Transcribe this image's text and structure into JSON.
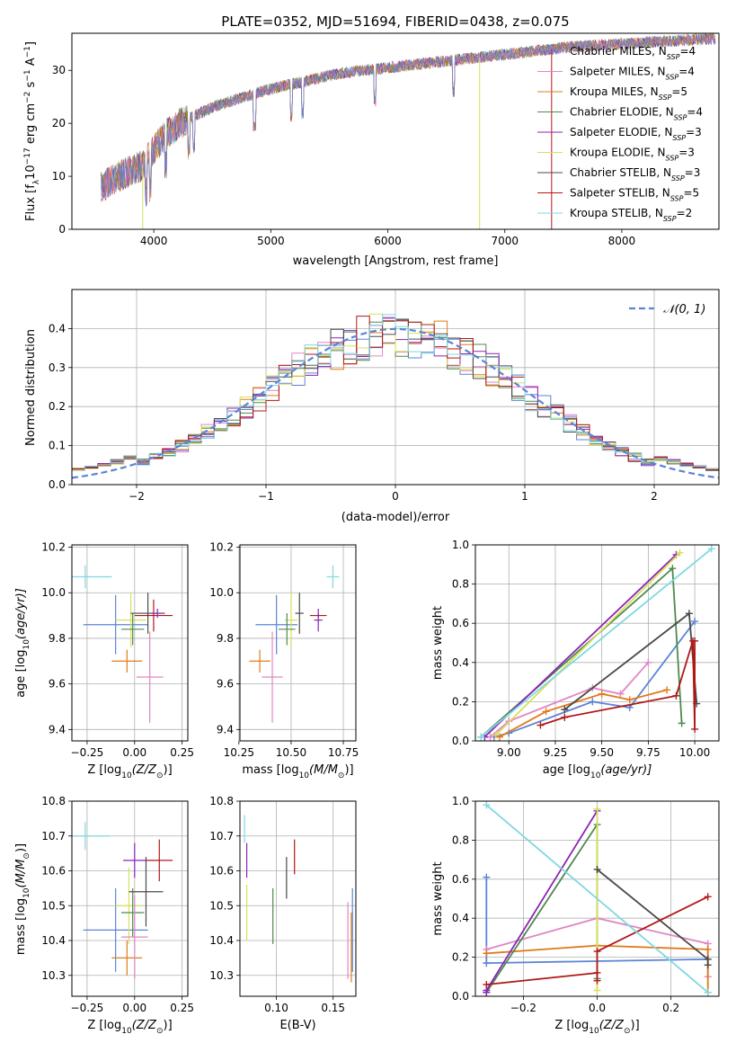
{
  "colors": {
    "chabrier_miles": "#5b84d6",
    "salpeter_miles": "#e086c4",
    "kroupa_miles": "#e07b1a",
    "chabrier_elodie": "#4e8a4e",
    "salpeter_elodie": "#8b24b6",
    "kroupa_elodie": "#d6e05a",
    "chabrier_stelib": "#4a4a4a",
    "salpeter_stelib": "#b01818",
    "kroupa_stelib": "#7fd8e0",
    "normal_curve": "#5b84d6",
    "grid": "#b0b0b0"
  },
  "chart_data": [
    {
      "type": "line",
      "panel": "spectrum",
      "title": "PLATE=0352, MJD=51694, FIBERID=0438, z=0.075",
      "xlabel": "wavelength [Angstrom, rest frame]",
      "ylabel_text": "Flux [f",
      "ylabel_sub": "λ",
      "ylabel_rest": "10",
      "ylabel_exp": "−17",
      "ylabel_tail": " erg cm",
      "ylabel_units": [
        "−2",
        "s",
        "−1",
        "A",
        "−1"
      ],
      "xlim": [
        3300,
        8830
      ],
      "ylim": [
        0,
        37
      ],
      "xticks": [
        4000,
        5000,
        6000,
        7000,
        8000
      ],
      "yticks": [
        0,
        10,
        20,
        30
      ],
      "grid": false,
      "legend_placement": "right",
      "legend": [
        {
          "lib": "Chabrier MILES",
          "n": "4",
          "key": "chabrier_miles"
        },
        {
          "lib": "Salpeter MILES",
          "n": "4",
          "key": "salpeter_miles"
        },
        {
          "lib": "Kroupa MILES",
          "n": "5",
          "key": "kroupa_miles"
        },
        {
          "lib": "Chabrier ELODIE",
          "n": "4",
          "key": "chabrier_elodie"
        },
        {
          "lib": "Salpeter ELODIE",
          "n": "3",
          "key": "salpeter_elodie"
        },
        {
          "lib": "Kroupa ELODIE",
          "n": "3",
          "key": "kroupa_elodie"
        },
        {
          "lib": "Chabrier STELIB",
          "n": "3",
          "key": "chabrier_stelib"
        },
        {
          "lib": "Salpeter STELIB",
          "n": "5",
          "key": "salpeter_stelib"
        },
        {
          "lib": "Kroupa STELIB",
          "n": "2",
          "key": "kroupa_stelib"
        }
      ],
      "legend_n_label": "N",
      "legend_n_sub": "SSP",
      "continuum": {
        "x": [
          3550,
          3700,
          3900,
          4000,
          4100,
          4300,
          4500,
          4700,
          5000,
          5300,
          5600,
          6000,
          6400,
          6800,
          7200,
          7600,
          8000,
          8400,
          8800
        ],
        "y": [
          8,
          10,
          12,
          15,
          18,
          21,
          23,
          24.5,
          26.5,
          28,
          29.5,
          30.5,
          31.5,
          32.5,
          33.5,
          34.5,
          35,
          35.5,
          36
        ]
      },
      "absorption_lines": [
        3934,
        3969,
        4102,
        4300,
        4340,
        4861,
        5175,
        5270,
        5890,
        6563
      ],
      "spikes": [
        {
          "x": 3905,
          "y_low": 0,
          "key": "kroupa_elodie"
        },
        {
          "x": 6785,
          "y_low": 0,
          "key": "kroupa_elodie"
        },
        {
          "x": 7400,
          "y_low": 0,
          "key": "salpeter_stelib"
        }
      ]
    },
    {
      "type": "line",
      "panel": "residual-histogram",
      "xlabel": "(data-model)/error",
      "ylabel": "Normed distribution",
      "xlim": [
        -2.5,
        2.5
      ],
      "ylim": [
        0,
        0.5
      ],
      "xticks": [
        -2,
        -1,
        0,
        1,
        2
      ],
      "yticks": [
        0.0,
        0.1,
        0.2,
        0.3,
        0.4
      ],
      "grid": true,
      "legend_placement": "top-right",
      "legend_label": "𝒩(0, 1)",
      "bin_width": 0.1
    },
    {
      "type": "scatter",
      "panel": "age-vs-z",
      "xlabel_pre": "Z [log",
      "xlabel_sub": "10",
      "xlabel_post": "(Z/Z",
      "xlabel_sun": "⊙",
      "xlabel_end": ")]",
      "ylabel_pre": "age  [log",
      "ylabel_sub": "10",
      "ylabel_post": "(age/yr)]",
      "xlim": [
        -0.33,
        0.28
      ],
      "ylim": [
        9.35,
        10.21
      ],
      "xticks": [
        -0.25,
        0.0,
        0.25
      ],
      "yticks": [
        9.4,
        9.6,
        9.8,
        10.0,
        10.2
      ],
      "grid": true,
      "points": [
        {
          "key": "kroupa_stelib",
          "x": -0.26,
          "y": 10.07,
          "xerr": 0.14,
          "yerr": 0.05
        },
        {
          "key": "chabrier_miles",
          "x": -0.1,
          "y": 9.86,
          "xerr": 0.17,
          "yerr": 0.13
        },
        {
          "key": "kroupa_elodie",
          "x": -0.02,
          "y": 9.88,
          "xerr": 0.08,
          "yerr": 0.12
        },
        {
          "key": "chabrier_elodie",
          "x": -0.01,
          "y": 9.84,
          "xerr": 0.06,
          "yerr": 0.07
        },
        {
          "key": "chabrier_stelib",
          "x": 0.07,
          "y": 9.91,
          "xerr": 0.09,
          "yerr": 0.09
        },
        {
          "key": "salpeter_stelib",
          "x": 0.1,
          "y": 9.9,
          "xerr": 0.1,
          "yerr": 0.07
        },
        {
          "key": "kroupa_miles",
          "x": -0.04,
          "y": 9.7,
          "xerr": 0.08,
          "yerr": 0.05
        },
        {
          "key": "salpeter_miles",
          "x": 0.08,
          "y": 9.63,
          "xerr": 0.07,
          "yerr": 0.2
        },
        {
          "key": "salpeter_elodie",
          "x": 0.12,
          "y": 9.91,
          "xerr": 0.03,
          "yerr": 0.02
        }
      ]
    },
    {
      "type": "scatter",
      "panel": "age-vs-mass",
      "xlabel_pre": "mass [log",
      "xlabel_sub": "10",
      "xlabel_post": "(M/M",
      "xlabel_sun": "⊙",
      "xlabel_end": ")]",
      "xlim": [
        10.255,
        10.81
      ],
      "ylim": [
        9.35,
        10.21
      ],
      "xticks": [
        10.25,
        10.5,
        10.75
      ],
      "yticks": [
        9.4,
        9.6,
        9.8,
        10.0,
        10.2
      ],
      "grid": true,
      "points": [
        {
          "key": "kroupa_stelib",
          "x": 10.7,
          "y": 10.07,
          "xerr": 0.03,
          "yerr": 0.05
        },
        {
          "key": "chabrier_miles",
          "x": 10.43,
          "y": 9.86,
          "xerr": 0.1,
          "yerr": 0.13
        },
        {
          "key": "kroupa_elodie",
          "x": 10.5,
          "y": 9.88,
          "xerr": 0.03,
          "yerr": 0.12
        },
        {
          "key": "chabrier_elodie",
          "x": 10.48,
          "y": 9.84,
          "xerr": 0.04,
          "yerr": 0.07
        },
        {
          "key": "chabrier_stelib",
          "x": 10.54,
          "y": 9.91,
          "xerr": 0.02,
          "yerr": 0.09
        },
        {
          "key": "salpeter_stelib",
          "x": 10.63,
          "y": 9.9,
          "xerr": 0.04,
          "yerr": 0.01
        },
        {
          "key": "kroupa_miles",
          "x": 10.35,
          "y": 9.7,
          "xerr": 0.05,
          "yerr": 0.05
        },
        {
          "key": "salpeter_miles",
          "x": 10.41,
          "y": 9.63,
          "xerr": 0.05,
          "yerr": 0.2
        },
        {
          "key": "salpeter_elodie",
          "x": 10.63,
          "y": 9.88,
          "xerr": 0.02,
          "yerr": 0.05
        }
      ]
    },
    {
      "type": "line",
      "panel": "mass-weight-vs-age",
      "xlabel_pre": "age  [log",
      "xlabel_sub": "10",
      "xlabel_post": "(age/yr)]",
      "ylabel": "mass weight",
      "xlim": [
        8.82,
        10.13
      ],
      "ylim": [
        0,
        1
      ],
      "xticks": [
        9.0,
        9.25,
        9.5,
        9.75,
        10.0
      ],
      "yticks": [
        0.0,
        0.2,
        0.4,
        0.6,
        0.8,
        1.0
      ],
      "grid": true,
      "series": [
        {
          "key": "chabrier_miles",
          "x": [
            8.92,
            9.0,
            9.45,
            9.65,
            10.0
          ],
          "y": [
            0.02,
            0.04,
            0.2,
            0.17,
            0.61
          ]
        },
        {
          "key": "salpeter_miles",
          "x": [
            8.9,
            9.0,
            9.45,
            9.6,
            9.75
          ],
          "y": [
            0.02,
            0.1,
            0.27,
            0.24,
            0.4
          ]
        },
        {
          "key": "kroupa_miles",
          "x": [
            8.95,
            9.2,
            9.5,
            9.65,
            9.85
          ],
          "y": [
            0.02,
            0.15,
            0.24,
            0.21,
            0.26
          ]
        },
        {
          "key": "chabrier_elodie",
          "x": [
            8.85,
            9.88,
            9.93
          ],
          "y": [
            0.02,
            0.88,
            0.09
          ]
        },
        {
          "key": "salpeter_elodie",
          "x": [
            8.87,
            9.9
          ],
          "y": [
            0.02,
            0.95
          ]
        },
        {
          "key": "kroupa_elodie",
          "x": [
            8.93,
            9.92
          ],
          "y": [
            0.03,
            0.96
          ]
        },
        {
          "key": "chabrier_stelib",
          "x": [
            9.3,
            9.97,
            10.01
          ],
          "y": [
            0.16,
            0.65,
            0.19
          ]
        },
        {
          "key": "salpeter_stelib",
          "x": [
            9.17,
            9.3,
            9.9,
            9.99,
            10.0,
            10.0
          ],
          "y": [
            0.08,
            0.12,
            0.23,
            0.51,
            0.06,
            0.51
          ]
        },
        {
          "key": "kroupa_stelib",
          "x": [
            8.85,
            10.09
          ],
          "y": [
            0.02,
            0.98
          ]
        }
      ]
    },
    {
      "type": "scatter",
      "panel": "mass-vs-z",
      "xlabel_pre": "Z [log",
      "xlabel_sub": "10",
      "xlabel_post": "(Z/Z",
      "xlabel_sun": "⊙",
      "xlabel_end": ")]",
      "ylabel_pre": "mass [log",
      "ylabel_sub": "10",
      "ylabel_post": "(M/M",
      "ylabel_sun": "⊙",
      "ylabel_end": ")]",
      "xlim": [
        -0.33,
        0.28
      ],
      "ylim": [
        10.24,
        10.8
      ],
      "xticks": [
        -0.25,
        0.0,
        0.25
      ],
      "yticks": [
        10.3,
        10.4,
        10.5,
        10.6,
        10.7,
        10.8
      ],
      "grid": true,
      "points": [
        {
          "key": "kroupa_stelib",
          "x": -0.26,
          "y": 10.7,
          "xerr": 0.13,
          "yerr": 0.04
        },
        {
          "key": "chabrier_miles",
          "x": -0.1,
          "y": 10.43,
          "xerr": 0.17,
          "yerr": 0.12
        },
        {
          "key": "kroupa_elodie",
          "x": -0.03,
          "y": 10.5,
          "xerr": 0.07,
          "yerr": 0.11
        },
        {
          "key": "chabrier_elodie",
          "x": -0.01,
          "y": 10.48,
          "xerr": 0.06,
          "yerr": 0.07
        },
        {
          "key": "chabrier_stelib",
          "x": 0.06,
          "y": 10.54,
          "xerr": 0.09,
          "yerr": 0.1
        },
        {
          "key": "salpeter_stelib",
          "x": 0.13,
          "y": 10.63,
          "xerr": 0.07,
          "yerr": 0.06
        },
        {
          "key": "kroupa_miles",
          "x": -0.04,
          "y": 10.35,
          "xerr": 0.08,
          "yerr": 0.05
        },
        {
          "key": "salpeter_miles",
          "x": 0.0,
          "y": 10.41,
          "xerr": 0.07,
          "yerr": 0.12
        },
        {
          "key": "salpeter_elodie",
          "x": 0.0,
          "y": 10.63,
          "xerr": 0.06,
          "yerr": 0.05
        }
      ]
    },
    {
      "type": "scatter",
      "panel": "mass-vs-ebv",
      "xlabel": "E(B-V)",
      "xlim": [
        0.068,
        0.17
      ],
      "ylim": [
        10.24,
        10.8
      ],
      "xticks": [
        0.1,
        0.15
      ],
      "yticks": [
        10.3,
        10.4,
        10.5,
        10.6,
        10.7,
        10.8
      ],
      "grid": true,
      "points": [
        {
          "key": "kroupa_stelib",
          "x": 0.072,
          "y": 10.72,
          "yerr": 0.04
        },
        {
          "key": "salpeter_elodie",
          "x": 0.074,
          "y": 10.63,
          "yerr": 0.05
        },
        {
          "key": "kroupa_elodie",
          "x": 0.074,
          "y": 10.48,
          "yerr": 0.08
        },
        {
          "key": "chabrier_elodie",
          "x": 0.097,
          "y": 10.47,
          "yerr": 0.08
        },
        {
          "key": "chabrier_stelib",
          "x": 0.109,
          "y": 10.58,
          "yerr": 0.06
        },
        {
          "key": "salpeter_stelib",
          "x": 0.116,
          "y": 10.64,
          "yerr": 0.05
        },
        {
          "key": "salpeter_miles",
          "x": 0.163,
          "y": 10.4,
          "yerr": 0.11
        },
        {
          "key": "kroupa_miles",
          "x": 0.166,
          "y": 10.38,
          "yerr": 0.1
        },
        {
          "key": "chabrier_miles",
          "x": 0.167,
          "y": 10.43,
          "yerr": 0.12
        }
      ]
    },
    {
      "type": "line",
      "panel": "mass-weight-vs-z",
      "xlabel_pre": "Z [log",
      "xlabel_sub": "10",
      "xlabel_post": "(Z/Z",
      "xlabel_sun": "⊙",
      "xlabel_end": ")]",
      "ylabel": "mass weight",
      "xlim": [
        -0.33,
        0.33
      ],
      "ylim": [
        0,
        1
      ],
      "xticks": [
        -0.2,
        0.0,
        0.2
      ],
      "yticks": [
        0.0,
        0.2,
        0.4,
        0.6,
        0.8,
        1.0
      ],
      "grid": true,
      "series": [
        {
          "key": "chabrier_miles",
          "x": [
            -0.3,
            -0.3,
            -0.3,
            0.3
          ],
          "y": [
            0.61,
            0.17,
            0.17,
            0.19
          ]
        },
        {
          "key": "salpeter_miles",
          "x": [
            -0.3,
            0.0,
            0.3,
            0.3
          ],
          "y": [
            0.24,
            0.4,
            0.27,
            0.1
          ]
        },
        {
          "key": "kroupa_miles",
          "x": [
            -0.3,
            0.0,
            0.3,
            0.3
          ],
          "y": [
            0.22,
            0.26,
            0.24,
            0.02
          ]
        },
        {
          "key": "chabrier_elodie",
          "x": [
            -0.3,
            0.0,
            0.0
          ],
          "y": [
            0.02,
            0.88,
            0.09
          ]
        },
        {
          "key": "salpeter_elodie",
          "x": [
            -0.3,
            -0.3,
            0.0
          ],
          "y": [
            0.02,
            0.03,
            0.95
          ]
        },
        {
          "key": "kroupa_elodie",
          "x": [
            0.0,
            0.0
          ],
          "y": [
            0.03,
            0.96
          ]
        },
        {
          "key": "chabrier_stelib",
          "x": [
            0.0,
            0.3,
            0.3
          ],
          "y": [
            0.65,
            0.19,
            0.16
          ]
        },
        {
          "key": "salpeter_stelib",
          "x": [
            -0.3,
            0.0,
            0.0,
            0.0,
            0.3
          ],
          "y": [
            0.06,
            0.12,
            0.08,
            0.23,
            0.51
          ]
        },
        {
          "key": "kroupa_stelib",
          "x": [
            -0.3,
            0.3
          ],
          "y": [
            0.98,
            0.02
          ]
        }
      ]
    }
  ]
}
